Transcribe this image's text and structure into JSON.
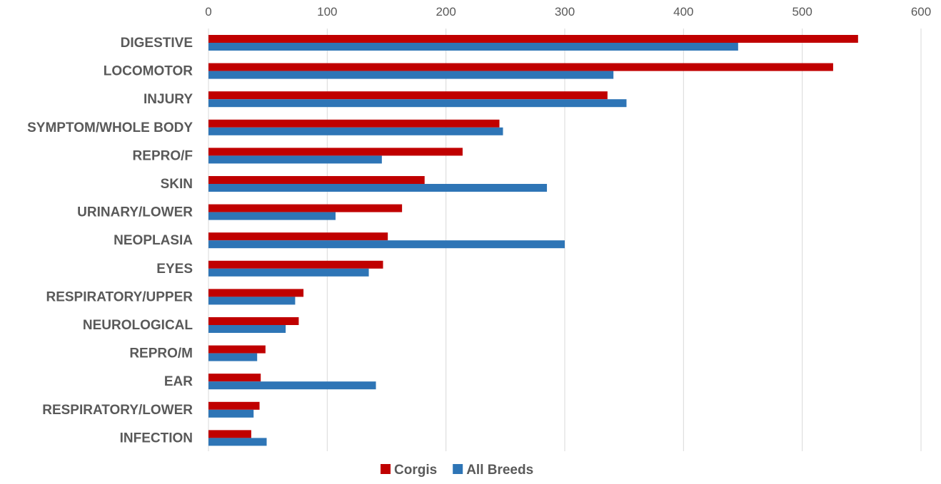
{
  "chart_data": {
    "type": "bar",
    "orientation": "horizontal",
    "categories": [
      "DIGESTIVE",
      "LOCOMOTOR",
      "INJURY",
      "SYMPTOM/WHOLE BODY",
      "REPRO/F",
      "SKIN",
      "URINARY/LOWER",
      "NEOPLASIA",
      "EYES",
      "RESPIRATORY/UPPER",
      "NEUROLOGICAL",
      "REPRO/M",
      "EAR",
      "RESPIRATORY/LOWER",
      "INFECTION"
    ],
    "series": [
      {
        "name": "Corgis",
        "color": "#c00000",
        "values": [
          547,
          526,
          336,
          245,
          214,
          182,
          163,
          151,
          147,
          80,
          76,
          48,
          44,
          43,
          36
        ]
      },
      {
        "name": "All Breeds",
        "color": "#2e75b6",
        "values": [
          446,
          341,
          352,
          248,
          146,
          285,
          107,
          300,
          135,
          73,
          65,
          41,
          141,
          38,
          49
        ]
      }
    ],
    "xlim": [
      0,
      600
    ],
    "xticks": [
      0,
      100,
      200,
      300,
      400,
      500,
      600
    ],
    "xaxis_position": "top",
    "grid": true,
    "legend_position": "bottom",
    "title": "",
    "xlabel": "",
    "ylabel": ""
  }
}
